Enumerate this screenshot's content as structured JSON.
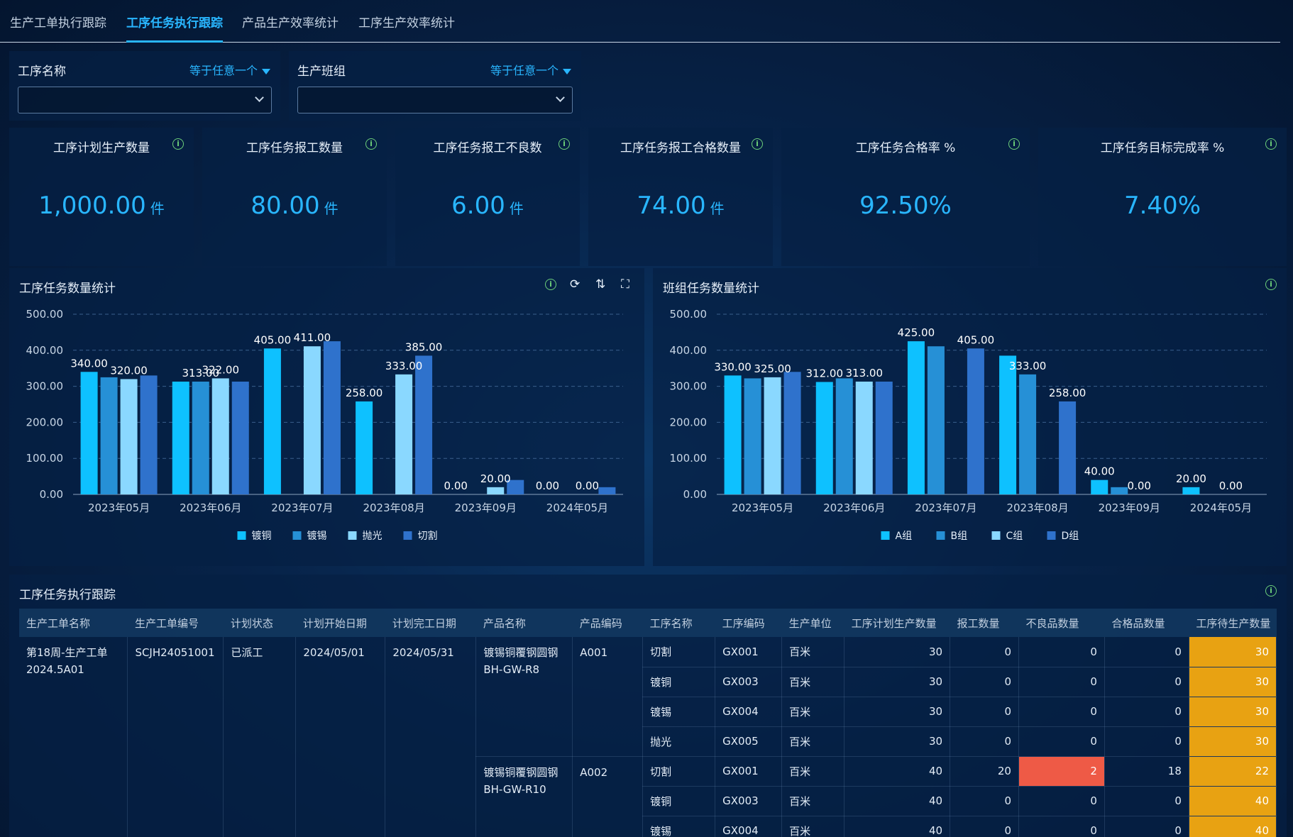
{
  "tabs": [
    "生产工单执行跟踪",
    "工序任务执行跟踪",
    "产品生产效率统计",
    "工序生产效率统计"
  ],
  "filters": [
    {
      "label": "工序名称",
      "operator": "等于任意一个"
    },
    {
      "label": "生产班组",
      "operator": "等于任意一个"
    }
  ],
  "kpis": [
    {
      "title": "工序计划生产数量",
      "value": "1,000.00",
      "unit": "件"
    },
    {
      "title": "工序任务报工数量",
      "value": "80.00",
      "unit": "件"
    },
    {
      "title": "工序任务报工不良数",
      "value": "6.00",
      "unit": "件"
    },
    {
      "title": "工序任务报工合格数量",
      "value": "74.00",
      "unit": "件"
    },
    {
      "title": "工序任务合格率 %",
      "value": "92.50%",
      "unit": ""
    },
    {
      "title": "工序任务目标完成率 %",
      "value": "7.40%",
      "unit": ""
    }
  ],
  "chart_titles": {
    "left": "工序任务数量统计",
    "right": "班组任务数量统计"
  },
  "chart_data": [
    {
      "type": "bar",
      "title": "工序任务数量统计",
      "categories": [
        "2023年05月",
        "2023年06月",
        "2023年07月",
        "2023年08月",
        "2023年09月",
        "2024年05月"
      ],
      "ylim": [
        0,
        500
      ],
      "yticks": [
        "0.00",
        "100.00",
        "200.00",
        "300.00",
        "400.00",
        "500.00"
      ],
      "series": [
        {
          "name": "镀铜",
          "color": "#0ec1ff",
          "values": [
            340,
            313,
            405,
            258,
            0,
            0
          ]
        },
        {
          "name": "镀锡",
          "color": "#2690d6",
          "values": [
            325,
            313,
            0,
            0,
            0,
            0
          ]
        },
        {
          "name": "抛光",
          "color": "#8ad8ff",
          "values": [
            320,
            322,
            411,
            333,
            20,
            0
          ]
        },
        {
          "name": "切割",
          "color": "#2f72cc",
          "values": [
            330,
            313,
            425,
            385,
            40,
            20
          ]
        }
      ],
      "labels": [
        [
          0,
          0,
          "340.00"
        ],
        [
          2,
          0,
          "320.00"
        ],
        [
          1,
          1,
          "313.00"
        ],
        [
          2,
          1,
          "322.00"
        ],
        [
          0,
          2,
          "405.00"
        ],
        [
          2,
          2,
          "411.00"
        ],
        [
          0,
          3,
          "258.00"
        ],
        [
          2,
          3,
          "333.00"
        ],
        [
          3,
          3,
          "385.00"
        ],
        [
          0,
          4,
          "0.00"
        ],
        [
          2,
          4,
          "20.00"
        ],
        [
          0,
          5,
          "0.00"
        ],
        [
          2,
          5,
          "0.00"
        ]
      ]
    },
    {
      "type": "bar",
      "title": "班组任务数量统计",
      "categories": [
        "2023年05月",
        "2023年06月",
        "2023年07月",
        "2023年08月",
        "2023年09月",
        "2024年05月"
      ],
      "ylim": [
        0,
        500
      ],
      "yticks": [
        "0.00",
        "100.00",
        "200.00",
        "300.00",
        "400.00",
        "500.00"
      ],
      "series": [
        {
          "name": "A组",
          "color": "#0ec1ff",
          "values": [
            330,
            312,
            425,
            385,
            40,
            20
          ]
        },
        {
          "name": "B组",
          "color": "#2690d6",
          "values": [
            322,
            322,
            411,
            333,
            20,
            0
          ]
        },
        {
          "name": "C组",
          "color": "#8ad8ff",
          "values": [
            325,
            313,
            0,
            0,
            0,
            0
          ]
        },
        {
          "name": "D组",
          "color": "#2f72cc",
          "values": [
            340,
            313,
            405,
            258,
            0,
            0
          ]
        }
      ],
      "labels": [
        [
          0,
          0,
          "330.00"
        ],
        [
          2,
          0,
          "325.00"
        ],
        [
          0,
          1,
          "312.00"
        ],
        [
          2,
          1,
          "313.00"
        ],
        [
          0,
          2,
          "425.00"
        ],
        [
          3,
          2,
          "405.00"
        ],
        [
          1,
          3,
          "333.00"
        ],
        [
          3,
          3,
          "258.00"
        ],
        [
          0,
          4,
          "40.00"
        ],
        [
          2,
          4,
          "0.00"
        ],
        [
          0,
          5,
          "20.00"
        ],
        [
          2,
          5,
          "0.00"
        ]
      ]
    }
  ],
  "table": {
    "title": "工序任务执行跟踪",
    "columns": [
      "生产工单名称",
      "生产工单编号",
      "计划状态",
      "计划开始日期",
      "计划完工日期",
      "产品名称",
      "产品编码",
      "工序名称",
      "工序编码",
      "生产单位",
      "工序计划生产数量",
      "报工数量",
      "不良品数量",
      "合格品数量",
      "工序待生产数量"
    ],
    "order": {
      "name": "第18周-生产工单2024.5A01",
      "code": "SCJH24051001",
      "status": "已派工",
      "start": "2024/05/01",
      "end": "2024/05/31"
    },
    "products": [
      {
        "name": "镀锡铜覆钢圆钢 BH-GW-R8",
        "code": "A001",
        "rows": [
          [
            "切割",
            "GX001",
            "百米",
            "30",
            "0",
            "0",
            "0",
            "30"
          ],
          [
            "镀铜",
            "GX003",
            "百米",
            "30",
            "0",
            "0",
            "0",
            "30"
          ],
          [
            "镀锡",
            "GX004",
            "百米",
            "30",
            "0",
            "0",
            "0",
            "30"
          ],
          [
            "抛光",
            "GX005",
            "百米",
            "30",
            "0",
            "0",
            "0",
            "30"
          ]
        ]
      },
      {
        "name": "镀锡铜覆钢圆钢 BH-GW-R10",
        "code": "A002",
        "rows": [
          [
            "切割",
            "GX001",
            "百米",
            "40",
            "20",
            "2",
            "18",
            "22"
          ],
          [
            "镀铜",
            "GX003",
            "百米",
            "40",
            "0",
            "0",
            "0",
            "40"
          ],
          [
            "镀锡",
            "GX004",
            "百米",
            "40",
            "0",
            "0",
            "0",
            "40"
          ]
        ]
      }
    ]
  }
}
